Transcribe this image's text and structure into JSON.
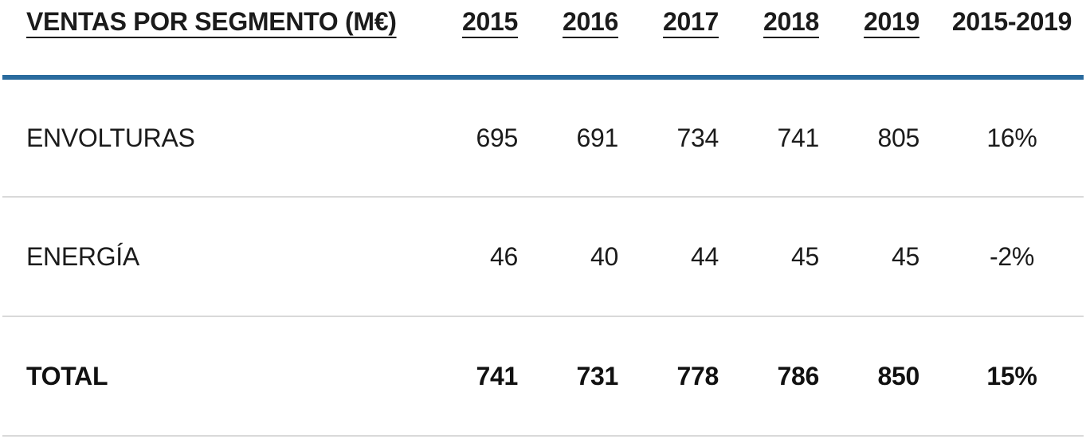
{
  "table": {
    "title": "VENTAS POR SEGMENTO (M€)",
    "columns": [
      "2015",
      "2016",
      "2017",
      "2018",
      "2019",
      "2015-2019"
    ],
    "rows": [
      {
        "label": "ENVOLTURAS",
        "values": [
          "695",
          "691",
          "734",
          "741",
          "805",
          "16%"
        ]
      },
      {
        "label": "ENERGÍA",
        "values": [
          "46",
          "40",
          "44",
          "45",
          "45",
          "-2%"
        ]
      },
      {
        "label": "TOTAL",
        "values": [
          "741",
          "731",
          "778",
          "786",
          "850",
          "15%"
        ]
      }
    ]
  },
  "colors": {
    "accent_rule_blue": "#2a6b9e",
    "row_divider_gray": "#d9d9d9",
    "text": "#1b1b1b"
  },
  "chart_data": {
    "type": "table",
    "title": "VENTAS POR SEGMENTO (M€)",
    "categories": [
      "2015",
      "2016",
      "2017",
      "2018",
      "2019"
    ],
    "series": [
      {
        "name": "ENVOLTURAS",
        "values": [
          695,
          691,
          734,
          741,
          805
        ],
        "change_2015_2019": "16%"
      },
      {
        "name": "ENERGÍA",
        "values": [
          46,
          40,
          44,
          45,
          45
        ],
        "change_2015_2019": "-2%"
      },
      {
        "name": "TOTAL",
        "values": [
          741,
          731,
          778,
          786,
          850
        ],
        "change_2015_2019": "15%"
      }
    ],
    "units": "M€",
    "notes": "Year column headers and title are underlined; TOTAL row is bold; thick blue rule separates header from body; light gray dividers between rows."
  }
}
